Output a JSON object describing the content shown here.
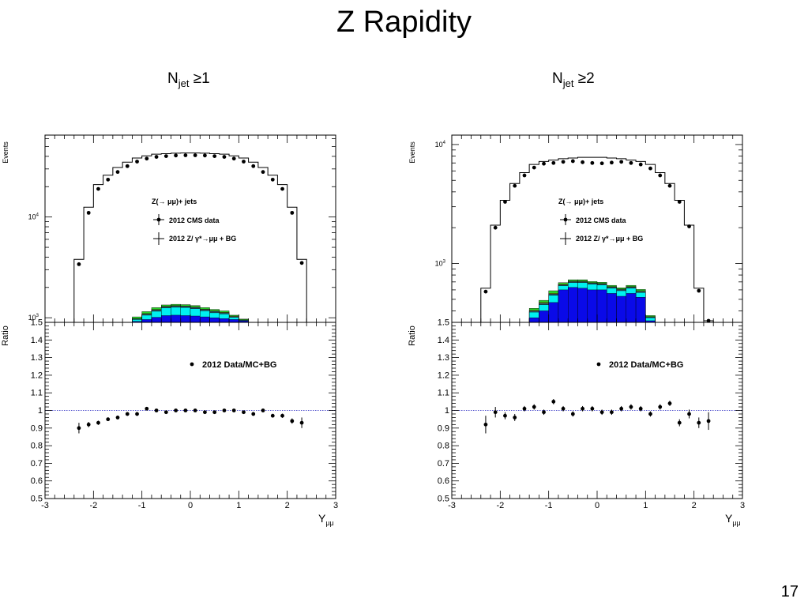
{
  "slide": {
    "title": "Z Rapidity",
    "page_number": "17"
  },
  "chart_data": [
    {
      "type": "bar",
      "panel_title_main": "N",
      "panel_title_sub": "jet",
      "panel_title_rest": " ≥1",
      "top": {
        "ylabel": "Events",
        "yscale": "log",
        "ylim": [
          900,
          65000
        ],
        "yticks": [
          {
            "v": 1000,
            "base": "10",
            "exp": "3"
          },
          {
            "v": 10000,
            "base": "10",
            "exp": "4"
          }
        ],
        "legend_title": "Z(→ μμ)+ jets",
        "legend_data": "2012 CMS data",
        "legend_mc": "2012 Z/ γ*→μμ + BG",
        "bin_edges": [
          -2.4,
          -2.2,
          -2.0,
          -1.8,
          -1.6,
          -1.4,
          -1.2,
          -1.0,
          -0.8,
          -0.6,
          -0.4,
          -0.2,
          0.0,
          0.2,
          0.4,
          0.6,
          0.8,
          1.0,
          1.2,
          1.4,
          1.6,
          1.8,
          2.0,
          2.2,
          2.4
        ],
        "mc_total": [
          3800,
          12500,
          21000,
          26000,
          31000,
          35000,
          38500,
          40500,
          42000,
          42500,
          43000,
          43200,
          43200,
          43000,
          42500,
          42000,
          40500,
          38500,
          35000,
          31000,
          26000,
          21000,
          12500,
          3800
        ],
        "data": [
          3400,
          11000,
          19000,
          23500,
          28000,
          32000,
          35500,
          38000,
          39500,
          40200,
          40800,
          41000,
          41000,
          40800,
          40200,
          39500,
          38000,
          35500,
          32000,
          28000,
          23500,
          19000,
          11000,
          3500
        ],
        "bg_bins": [
          -1.2,
          -1.0,
          -0.8,
          -0.6,
          -0.4,
          -0.2,
          0.0,
          0.2,
          0.4,
          0.6,
          0.8,
          1.0,
          1.2
        ],
        "bg_blue": [
          920,
          960,
          1010,
          1050,
          1060,
          1050,
          1040,
          1020,
          1000,
          980,
          960,
          930
        ],
        "bg_cyan": [
          960,
          1060,
          1160,
          1250,
          1270,
          1260,
          1230,
          1170,
          1120,
          1090,
          1010,
          940
        ],
        "bg_dark": [
          975,
          1090,
          1200,
          1290,
          1310,
          1300,
          1270,
          1210,
          1160,
          1120,
          1030,
          950
        ],
        "bg_yellow": [
          980,
          1100,
          1210,
          1300,
          1320,
          1310,
          1280,
          1220,
          1170,
          1130,
          1040,
          955
        ],
        "bg_green": [
          1020,
          1150,
          1260,
          1340,
          1360,
          1350,
          1320,
          1260,
          1210,
          1170,
          1060,
          970
        ],
        "colors": {
          "blue": "#0a0ae8",
          "cyan": "#00f0f0",
          "dark": "#2a5a6a",
          "yellow": "#f0f000",
          "green": "#28d428"
        }
      },
      "ratio": {
        "ylabel": "Ratio",
        "ylim": [
          0.5,
          1.5
        ],
        "yticks": [
          "0.5",
          "0.6",
          "0.7",
          "0.8",
          "0.9",
          "1",
          "1.1",
          "1.2",
          "1.3",
          "1.4",
          "1.5"
        ],
        "legend": "2012 Data/MC+BG",
        "xlabel": "Y",
        "xlabel_sub": "μμ",
        "xlim": [
          -3,
          3
        ],
        "xticks": [
          "-3",
          "-2",
          "-1",
          "0",
          "1",
          "2",
          "3"
        ],
        "x": [
          -2.3,
          -2.1,
          -1.9,
          -1.7,
          -1.5,
          -1.3,
          -1.1,
          -0.9,
          -0.7,
          -0.5,
          -0.3,
          -0.1,
          0.1,
          0.3,
          0.5,
          0.7,
          0.9,
          1.1,
          1.3,
          1.5,
          1.7,
          1.9,
          2.1,
          2.3
        ],
        "y": [
          0.9,
          0.92,
          0.93,
          0.95,
          0.96,
          0.98,
          0.98,
          1.01,
          1.0,
          0.99,
          1.0,
          1.0,
          1.0,
          0.99,
          0.99,
          1.0,
          1.0,
          0.99,
          0.98,
          1.0,
          0.97,
          0.97,
          0.94,
          0.93
        ],
        "err": [
          0.03,
          0.015,
          0.012,
          0.01,
          0.01,
          0.01,
          0.01,
          0.008,
          0.008,
          0.008,
          0.008,
          0.008,
          0.008,
          0.008,
          0.008,
          0.008,
          0.008,
          0.008,
          0.01,
          0.01,
          0.01,
          0.012,
          0.015,
          0.03
        ]
      }
    },
    {
      "type": "bar",
      "panel_title_main": "N",
      "panel_title_sub": "jet",
      "panel_title_rest": " ≥2",
      "top": {
        "ylabel": "Events",
        "yscale": "log",
        "ylim": [
          320,
          12000
        ],
        "yticks": [
          {
            "v": 1000,
            "base": "10",
            "exp": "3"
          },
          {
            "v": 10000,
            "base": "10",
            "exp": "4"
          }
        ],
        "legend_title": "Z(→ μμ)+ jets",
        "legend_data": "2012 CMS data",
        "legend_mc": "2012 Z/ γ*→μμ + BG",
        "bin_edges": [
          -2.4,
          -2.2,
          -2.0,
          -1.8,
          -1.6,
          -1.4,
          -1.2,
          -1.0,
          -0.8,
          -0.6,
          -0.4,
          -0.2,
          0.0,
          0.2,
          0.4,
          0.6,
          0.8,
          1.0,
          1.2,
          1.4,
          1.6,
          1.8,
          2.0,
          2.2,
          2.4
        ],
        "mc_total": [
          620,
          2100,
          3400,
          4700,
          5800,
          6800,
          7200,
          7400,
          7600,
          7700,
          7800,
          7800,
          7800,
          7700,
          7600,
          7400,
          7200,
          6800,
          5800,
          4700,
          3400,
          2100,
          620,
          330
        ],
        "data": [
          580,
          2000,
          3300,
          4500,
          5500,
          6400,
          6900,
          7000,
          7150,
          7250,
          7100,
          7000,
          6950,
          7050,
          7150,
          7000,
          6800,
          6300,
          5500,
          4500,
          3300,
          2050,
          590,
          330
        ],
        "bg_bins": [
          -1.4,
          -1.2,
          -1.0,
          -0.8,
          -0.6,
          -0.4,
          -0.2,
          0.0,
          0.2,
          0.4,
          0.6,
          0.8,
          1.0,
          1.2
        ],
        "bg_blue": [
          350,
          400,
          470,
          600,
          630,
          620,
          600,
          600,
          560,
          530,
          560,
          520,
          330
        ],
        "bg_cyan": [
          390,
          450,
          540,
          650,
          690,
          690,
          670,
          660,
          620,
          590,
          620,
          570,
          350
        ],
        "bg_dark": [
          400,
          465,
          555,
          665,
          705,
          705,
          685,
          675,
          635,
          605,
          635,
          585,
          355
        ],
        "bg_yellow": [
          405,
          470,
          560,
          672,
          712,
          712,
          690,
          680,
          640,
          610,
          640,
          590,
          358
        ],
        "bg_green": [
          420,
          490,
          590,
          690,
          730,
          730,
          705,
          695,
          655,
          625,
          655,
          605,
          365
        ],
        "colors": {
          "blue": "#0a0ae8",
          "cyan": "#00f0f0",
          "dark": "#2a5a6a",
          "yellow": "#f0f000",
          "green": "#28d428"
        }
      },
      "ratio": {
        "ylabel": "Ratio",
        "ylim": [
          0.5,
          1.5
        ],
        "yticks": [
          "0.5",
          "0.6",
          "0.7",
          "0.8",
          "0.9",
          "1",
          "1.1",
          "1.2",
          "1.3",
          "1.4",
          "1.5"
        ],
        "legend": "2012 Data/MC+BG",
        "xlabel": "Y",
        "xlabel_sub": "μμ",
        "xlim": [
          -3,
          3
        ],
        "xticks": [
          "-3",
          "-2",
          "-1",
          "0",
          "1",
          "2",
          "3"
        ],
        "x": [
          -2.3,
          -2.1,
          -1.9,
          -1.7,
          -1.5,
          -1.3,
          -1.1,
          -0.9,
          -0.7,
          -0.5,
          -0.3,
          -0.1,
          0.1,
          0.3,
          0.5,
          0.7,
          0.9,
          1.1,
          1.3,
          1.5,
          1.7,
          1.9,
          2.1,
          2.3
        ],
        "y": [
          0.92,
          0.99,
          0.97,
          0.96,
          1.01,
          1.02,
          0.99,
          1.05,
          1.01,
          0.98,
          1.01,
          1.01,
          0.99,
          0.99,
          1.01,
          1.02,
          1.01,
          0.98,
          1.02,
          1.04,
          0.93,
          0.98,
          0.93,
          0.94
        ],
        "err": [
          0.05,
          0.03,
          0.02,
          0.02,
          0.015,
          0.015,
          0.015,
          0.015,
          0.015,
          0.015,
          0.015,
          0.015,
          0.015,
          0.015,
          0.015,
          0.015,
          0.015,
          0.015,
          0.015,
          0.015,
          0.02,
          0.025,
          0.03,
          0.05
        ]
      }
    }
  ]
}
